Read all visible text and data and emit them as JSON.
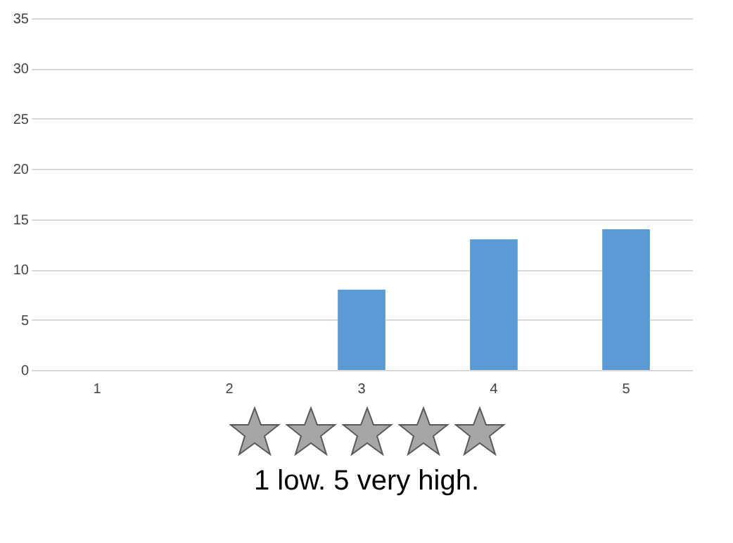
{
  "chart_data": {
    "type": "bar",
    "categories": [
      "1",
      "2",
      "3",
      "4",
      "5"
    ],
    "values": [
      0,
      0,
      8,
      13,
      14
    ],
    "color": "#5b9bd5",
    "ylim": [
      0,
      35
    ],
    "yticks": [
      0,
      5,
      10,
      15,
      20,
      25,
      30,
      35
    ],
    "grid": "y",
    "annotations": [
      "1 low. 5 very high."
    ]
  }
}
